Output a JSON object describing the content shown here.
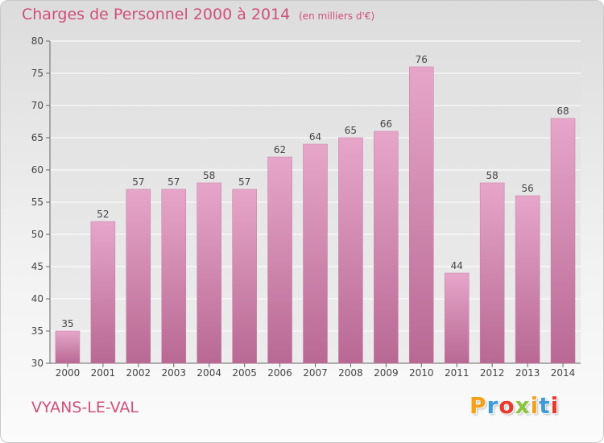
{
  "chart_data": {
    "type": "bar",
    "title": "Charges de Personnel 2000 à 2014",
    "subtitle": "(en milliers d'€)",
    "categories": [
      "2000",
      "2001",
      "2002",
      "2003",
      "2004",
      "2005",
      "2006",
      "2007",
      "2008",
      "2009",
      "2010",
      "2011",
      "2012",
      "2013",
      "2014"
    ],
    "values": [
      35,
      52,
      57,
      57,
      58,
      57,
      62,
      64,
      65,
      66,
      76,
      44,
      58,
      56,
      68
    ],
    "ylim": [
      30,
      80
    ],
    "yticks": [
      30,
      35,
      40,
      45,
      50,
      55,
      60,
      65,
      70,
      75,
      80
    ],
    "grid": true,
    "bar_color": "#d88bb3"
  },
  "footer": {
    "place": "VYANS-LE-VAL",
    "logo": [
      "P",
      "r",
      "o",
      "x",
      "i",
      "t",
      "i"
    ],
    "logo_colors": [
      "#f2a11d",
      "#3f9bd8",
      "#e8392c",
      "#8cc43f",
      "#f2a11d",
      "#3f9bd8",
      "#e8392c"
    ]
  }
}
